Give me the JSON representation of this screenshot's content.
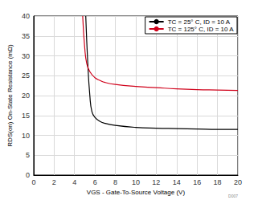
{
  "chart_data": {
    "type": "line",
    "x_label": "VGS - Gate-To-Source Voltage (V)",
    "y_label": "RDS(on) On-State Resistance (mΩ)",
    "annotation": "D007",
    "series": [
      {
        "name": "TC = 25° C, ID = 10 A",
        "color": "#000000",
        "x": [
          5.1,
          5.3,
          5.5,
          5.7,
          6,
          6.5,
          7,
          8,
          10,
          12,
          14,
          16,
          18,
          20
        ],
        "values": [
          40,
          28,
          20,
          16,
          14.5,
          13.5,
          13,
          12.5,
          12,
          11.8,
          11.7,
          11.6,
          11.5,
          11.5
        ]
      },
      {
        "name": "TC = 125° C, ID = 10 A",
        "color": "#d0021b",
        "x": [
          4.8,
          5.0,
          5.2,
          5.5,
          6,
          6.5,
          7,
          8,
          10,
          12,
          14,
          16,
          18,
          20
        ],
        "values": [
          40,
          32,
          28,
          26,
          24.5,
          23.8,
          23.3,
          22.8,
          22.3,
          22,
          21.7,
          21.5,
          21.4,
          21.3
        ]
      }
    ],
    "xlim": [
      0,
      20
    ],
    "xticks": [
      0,
      2,
      4,
      6,
      8,
      10,
      12,
      14,
      16,
      18,
      20
    ],
    "ylim": [
      0,
      40
    ],
    "yticks": [
      0,
      5,
      10,
      15,
      20,
      25,
      30,
      35,
      40
    ],
    "grid": true,
    "legend": "upper right"
  }
}
